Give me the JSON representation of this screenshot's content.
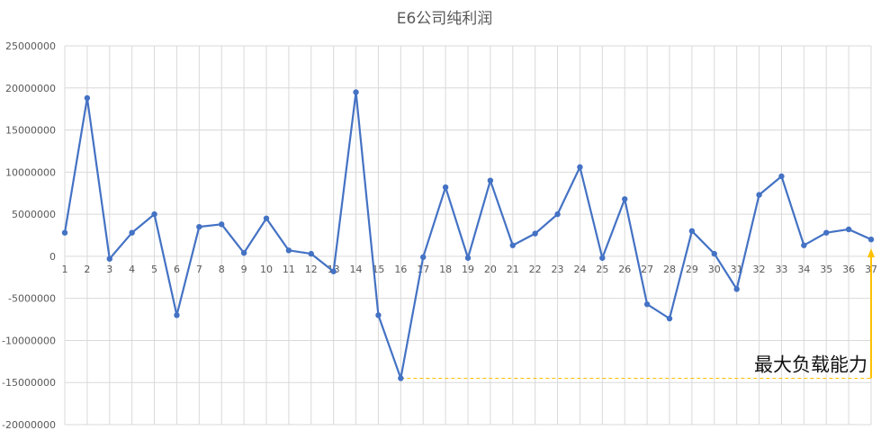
{
  "chart_data": {
    "type": "line",
    "title": "E6公司纯利润",
    "xlabel": "",
    "ylabel": "",
    "categories": [
      "1",
      "2",
      "3",
      "4",
      "5",
      "6",
      "7",
      "8",
      "9",
      "10",
      "11",
      "12",
      "13",
      "14",
      "15",
      "16",
      "17",
      "18",
      "19",
      "20",
      "21",
      "22",
      "23",
      "24",
      "25",
      "26",
      "27",
      "28",
      "29",
      "30",
      "31",
      "32",
      "33",
      "34",
      "35",
      "36",
      "37"
    ],
    "series": [
      {
        "values": [
          2800000,
          18800000,
          -300000,
          2800000,
          5000000,
          -7000000,
          3500000,
          3800000,
          400000,
          4500000,
          700000,
          300000,
          -1800000,
          19500000,
          -7000000,
          -14500000,
          -100000,
          8200000,
          -200000,
          9000000,
          1300000,
          2700000,
          5000000,
          10600000,
          -200000,
          6800000,
          -5700000,
          -7400000,
          3000000,
          300000,
          -3900000,
          7300000,
          9500000,
          1300000,
          2800000,
          3200000,
          2000000
        ]
      }
    ],
    "ylim": [
      -20000000,
      25000000
    ],
    "yticks": [
      "25000000",
      "20000000",
      "15000000",
      "10000000",
      "5000000",
      "0",
      "-5000000",
      "-10000000",
      "-15000000",
      "-20000000"
    ],
    "grid": true,
    "annotation": {
      "text": "最大负载能力",
      "from_category": "16",
      "to_category": "37",
      "level": -14500000
    },
    "colors": {
      "line": "#4472C4",
      "grid": "#D9D9D9",
      "annotation": "#FFC000",
      "axis_text": "#595959"
    }
  }
}
